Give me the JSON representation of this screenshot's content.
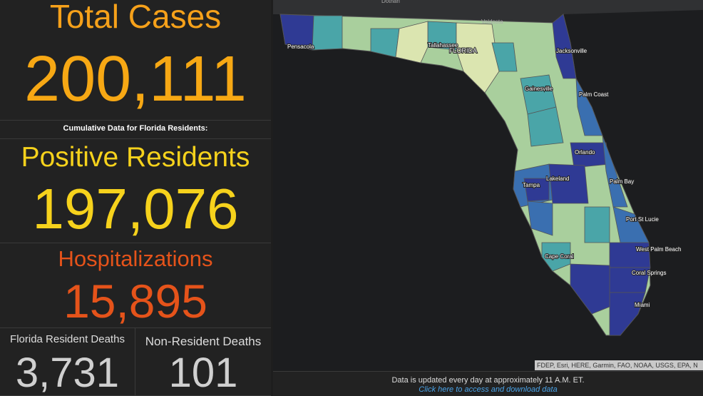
{
  "panels": {
    "total_cases": {
      "label": "Total Cases",
      "value": "200,111"
    },
    "note": "Cumulative Data for Florida Residents:",
    "positive_residents": {
      "label": "Positive Residents",
      "value": "197,076"
    },
    "hospitalizations": {
      "label": "Hospitalizations",
      "value": "15,895"
    },
    "resident_deaths": {
      "label": "Florida Resident Deaths",
      "value": "3,731"
    },
    "nonresident_deaths": {
      "label": "Non-Resident Deaths",
      "value": "101"
    }
  },
  "map": {
    "places": [
      "Dothan",
      "Valdosta",
      "Pensacola",
      "Tallahassee",
      "FLORIDA",
      "Jacksonville",
      "Gainesville",
      "Palm Coast",
      "Orlando",
      "Lakeland",
      "Tampa",
      "Palm Bay",
      "Port St Lucie",
      "Cape Coral",
      "West Palm Beach",
      "Coral Springs",
      "Miami"
    ],
    "attribution": "FDEP, Esri, HERE, Garmin, FAO, NOAA, USGS, EPA, N"
  },
  "footer": {
    "update_note": "Data is updated every day at approximately 11 A.M. ET.",
    "link": "Click here to access and download data"
  }
}
